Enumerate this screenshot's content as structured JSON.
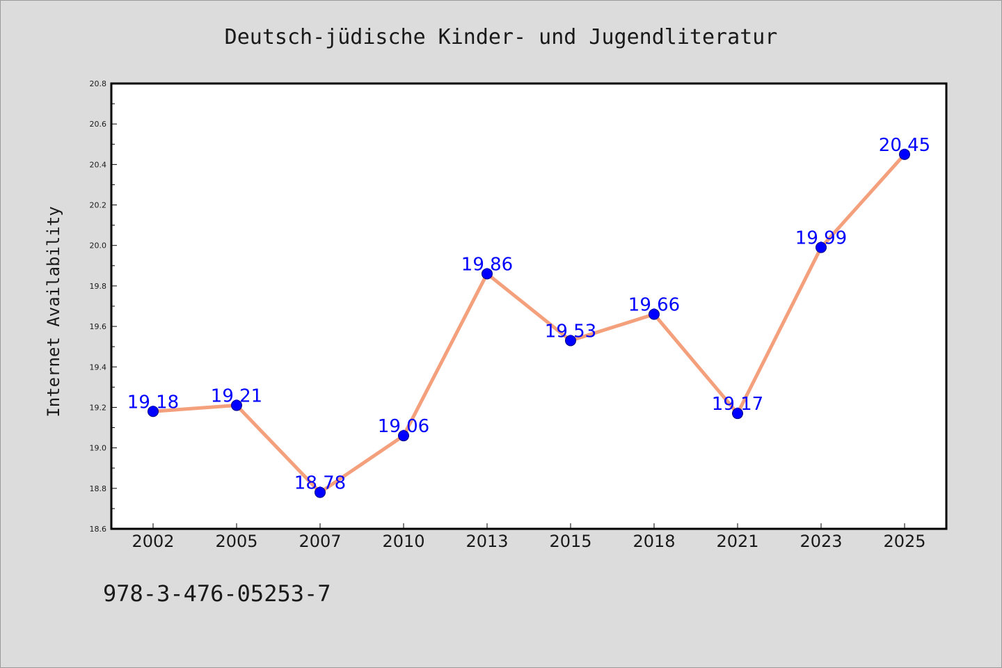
{
  "chart_data": {
    "type": "line",
    "title": "Deutsch-jüdische Kinder- und Jugendliteratur",
    "xlabel": "",
    "ylabel": "Internet Availability",
    "categories": [
      "2002",
      "2005",
      "2007",
      "2010",
      "2013",
      "2015",
      "2018",
      "2021",
      "2023",
      "2025"
    ],
    "series": [
      {
        "values": [
          19.18,
          19.21,
          18.78,
          19.06,
          19.86,
          19.53,
          19.66,
          19.17,
          19.99,
          20.45
        ],
        "data_labels": [
          "19.18",
          "19.21",
          "18.78",
          "19.06",
          "19.86",
          "19.53",
          "19.66",
          "19.17",
          "19.99",
          "20.45"
        ],
        "line_color": "#f4a07c",
        "marker_color": "#0000ff"
      }
    ],
    "ylim": [
      18.6,
      20.8
    ],
    "yticks": [
      "18.6",
      "18.8",
      "19.0",
      "19.2",
      "19.4",
      "19.6",
      "19.8",
      "20.0",
      "20.2",
      "20.4",
      "20.6",
      "20.8"
    ],
    "grid": false,
    "legend": "none"
  },
  "footer": {
    "isbn": "978-3-476-05253-7"
  },
  "colors": {
    "background": "#dcdcdc",
    "plot_background": "#ffffff",
    "axes": "#000000",
    "line": "#f4a07c",
    "marker": "#0000ff",
    "data_label": "#0000ff"
  }
}
